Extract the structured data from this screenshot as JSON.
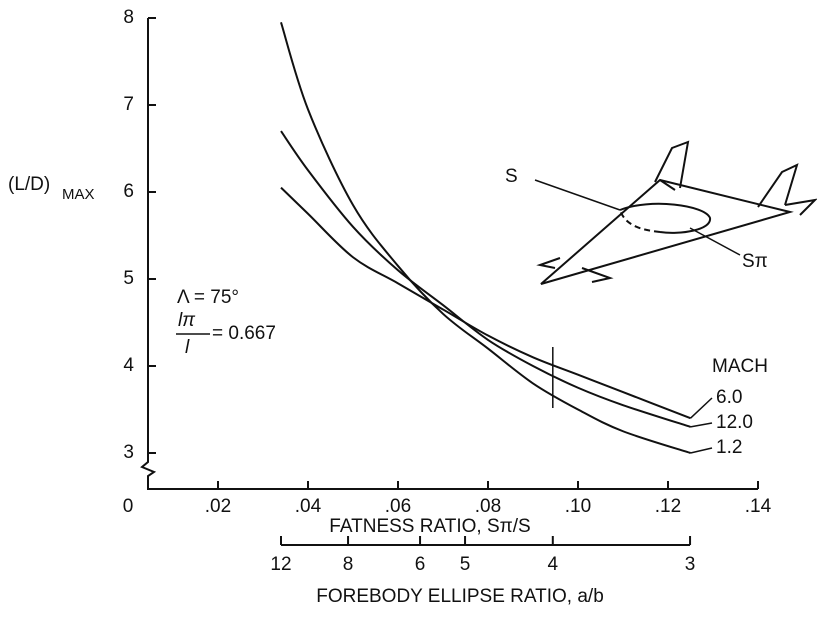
{
  "chart_data": {
    "type": "line",
    "y_label": {
      "main": "(L/D)",
      "sub": "MAX"
    },
    "x_label": "FATNESS RATIO, Sπ/S",
    "x2_label": "FOREBODY ELLIPSE RATIO, a/b",
    "legend_title": "MACH",
    "annotations": {
      "sweep": "Λ = 75°",
      "ratio_num": "lπ",
      "ratio_den": "l",
      "ratio_value": "= 0.667"
    },
    "diagram_labels": {
      "wing_area": "S",
      "section_area": "Sπ"
    },
    "x": [
      0.034,
      0.04,
      0.05,
      0.06,
      0.07,
      0.08,
      0.09,
      0.1,
      0.11,
      0.125
    ],
    "series": [
      {
        "name": "6.0",
        "color": "#111111",
        "values": [
          6.05,
          5.75,
          5.25,
          4.95,
          4.65,
          4.35,
          4.1,
          3.9,
          3.7,
          3.4
        ]
      },
      {
        "name": "12.0",
        "color": "#111111",
        "values": [
          6.7,
          6.25,
          5.6,
          5.1,
          4.7,
          4.3,
          4.0,
          3.75,
          3.55,
          3.3
        ]
      },
      {
        "name": "1.2",
        "color": "#111111",
        "values": [
          7.95,
          6.95,
          5.85,
          5.15,
          4.6,
          4.2,
          3.8,
          3.5,
          3.25,
          3.0
        ]
      }
    ],
    "xlim": [
      0,
      0.14
    ],
    "ylim": [
      2.6,
      8
    ],
    "xticks": [
      0,
      {
        "value": 0.02,
        "label": ".02"
      },
      {
        "value": 0.04,
        "label": ".04"
      },
      {
        "value": 0.06,
        "label": ".06"
      },
      {
        "value": 0.08,
        "label": ".08"
      },
      {
        "value": 0.1,
        "label": ".10"
      },
      {
        "value": 0.12,
        "label": ".12"
      },
      {
        "value": 0.14,
        "label": ".14"
      }
    ],
    "yticks": [
      3,
      4,
      5,
      6,
      7,
      8
    ],
    "x2ticks": [
      {
        "value": 0.034,
        "label": "12"
      },
      {
        "value": 0.0489,
        "label": "8"
      },
      {
        "value": 0.0649,
        "label": "6"
      },
      {
        "value": 0.0749,
        "label": "5"
      },
      {
        "value": 0.0944,
        "label": "4"
      },
      {
        "value": 0.1249,
        "label": "3"
      }
    ],
    "grid": false
  }
}
